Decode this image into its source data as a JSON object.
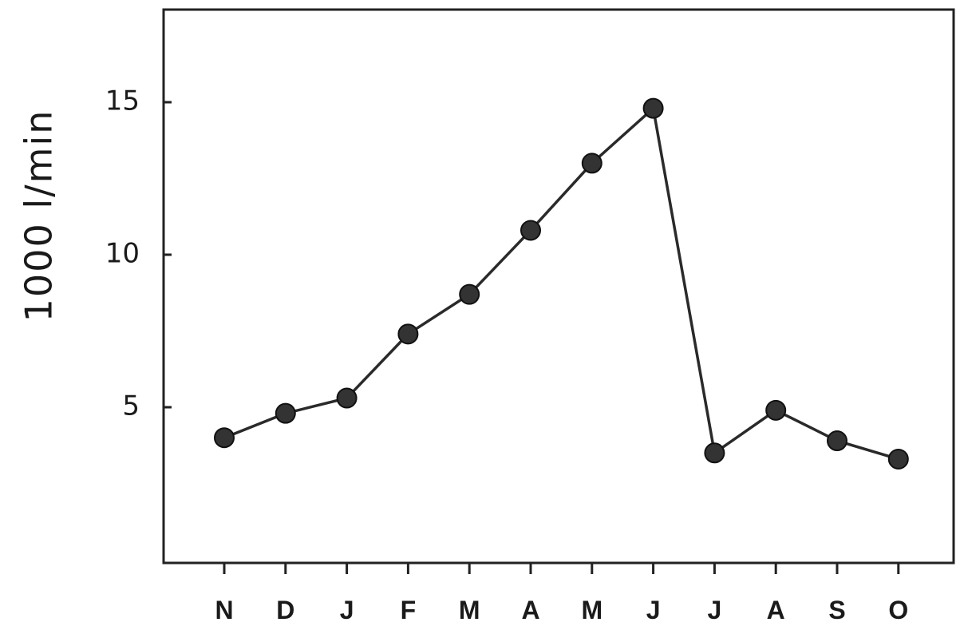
{
  "chart_data": {
    "type": "line",
    "title": "",
    "xlabel": "",
    "ylabel": "1000 l/min",
    "categories": [
      "N",
      "D",
      "J",
      "F",
      "M",
      "A",
      "M",
      "J",
      "J",
      "A",
      "S",
      "O"
    ],
    "series": [
      {
        "values": [
          4.0,
          4.8,
          5.3,
          7.4,
          8.7,
          10.8,
          13.0,
          14.8,
          3.5,
          4.9,
          3.9,
          3.3
        ]
      }
    ],
    "ylim": [
      0,
      18
    ],
    "yticks": [
      5,
      10,
      15
    ],
    "ytick_labels": [
      "5",
      "10",
      "15"
    ],
    "grid": false,
    "legend": "none",
    "colors": {
      "line": "#2a2a2a",
      "marker": "#333333",
      "axis": "#222222"
    }
  }
}
